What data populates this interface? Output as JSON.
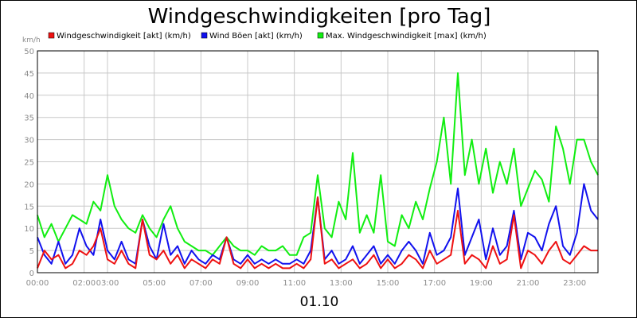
{
  "chart_data": {
    "type": "line",
    "title": "Windgeschwindigkeiten [pro Tag]",
    "ylabel": "km/h",
    "xlabel": "01.10",
    "ylim": [
      0,
      50
    ],
    "yticks": [
      0,
      5,
      10,
      15,
      20,
      25,
      30,
      35,
      40,
      45,
      50
    ],
    "xlim": [
      0,
      24
    ],
    "xticks": [
      {
        "x": 0,
        "label": "00:00"
      },
      {
        "x": 2,
        "label": "02:00"
      },
      {
        "x": 3,
        "label": "03:00"
      },
      {
        "x": 5,
        "label": "05:00"
      },
      {
        "x": 7,
        "label": "07:00"
      },
      {
        "x": 9,
        "label": "09:00"
      },
      {
        "x": 11,
        "label": "11:00"
      },
      {
        "x": 13,
        "label": "13:00"
      },
      {
        "x": 15,
        "label": "15:00"
      },
      {
        "x": 17,
        "label": "17:00"
      },
      {
        "x": 19,
        "label": "19:00"
      },
      {
        "x": 21,
        "label": "21:00"
      },
      {
        "x": 23,
        "label": "23:00"
      }
    ],
    "grid": true,
    "legend_position": "top",
    "series": [
      {
        "name": "Windgeschwindigkeit [akt] (km/h)",
        "color": "#ee1111",
        "x": [
          0,
          0.3,
          0.6,
          0.9,
          1.2,
          1.5,
          1.8,
          2.1,
          2.4,
          2.7,
          3.0,
          3.3,
          3.6,
          3.9,
          4.2,
          4.5,
          4.8,
          5.1,
          5.4,
          5.7,
          6.0,
          6.3,
          6.6,
          6.9,
          7.2,
          7.5,
          7.8,
          8.1,
          8.4,
          8.7,
          9.0,
          9.3,
          9.6,
          9.9,
          10.2,
          10.5,
          10.8,
          11.1,
          11.4,
          11.7,
          12.0,
          12.3,
          12.6,
          12.9,
          13.2,
          13.5,
          13.8,
          14.1,
          14.4,
          14.7,
          15.0,
          15.3,
          15.6,
          15.9,
          16.2,
          16.5,
          16.8,
          17.1,
          17.4,
          17.7,
          18.0,
          18.3,
          18.6,
          18.9,
          19.2,
          19.5,
          19.8,
          20.1,
          20.4,
          20.7,
          21.0,
          21.3,
          21.6,
          21.9,
          22.2,
          22.5,
          22.8,
          23.1,
          23.4,
          23.7,
          24.0
        ],
        "y": [
          1,
          5,
          3,
          4,
          1,
          2,
          5,
          4,
          6,
          10,
          3,
          2,
          5,
          2,
          1,
          12,
          4,
          3,
          5,
          2,
          4,
          1,
          3,
          2,
          1,
          3,
          2,
          8,
          2,
          1,
          3,
          1,
          2,
          1,
          2,
          1,
          1,
          2,
          1,
          3,
          17,
          2,
          3,
          1,
          2,
          3,
          1,
          2,
          4,
          1,
          3,
          1,
          2,
          4,
          3,
          1,
          5,
          2,
          3,
          4,
          14,
          2,
          4,
          3,
          1,
          6,
          2,
          3,
          13,
          1,
          5,
          4,
          2,
          5,
          7,
          3,
          2,
          4,
          6,
          5,
          5
        ]
      },
      {
        "name": "Wind Böen [akt] (km/h)",
        "color": "#1111ee",
        "x": [
          0,
          0.3,
          0.6,
          0.9,
          1.2,
          1.5,
          1.8,
          2.1,
          2.4,
          2.7,
          3.0,
          3.3,
          3.6,
          3.9,
          4.2,
          4.5,
          4.8,
          5.1,
          5.4,
          5.7,
          6.0,
          6.3,
          6.6,
          6.9,
          7.2,
          7.5,
          7.8,
          8.1,
          8.4,
          8.7,
          9.0,
          9.3,
          9.6,
          9.9,
          10.2,
          10.5,
          10.8,
          11.1,
          11.4,
          11.7,
          12.0,
          12.3,
          12.6,
          12.9,
          13.2,
          13.5,
          13.8,
          14.1,
          14.4,
          14.7,
          15.0,
          15.3,
          15.6,
          15.9,
          16.2,
          16.5,
          16.8,
          17.1,
          17.4,
          17.7,
          18.0,
          18.3,
          18.6,
          18.9,
          19.2,
          19.5,
          19.8,
          20.1,
          20.4,
          20.7,
          21.0,
          21.3,
          21.6,
          21.9,
          22.2,
          22.5,
          22.8,
          23.1,
          23.4,
          23.7,
          24.0
        ],
        "y": [
          8,
          4,
          2,
          7,
          2,
          4,
          10,
          6,
          4,
          12,
          5,
          3,
          7,
          3,
          2,
          12,
          6,
          3,
          11,
          4,
          6,
          2,
          5,
          3,
          2,
          4,
          3,
          8,
          3,
          2,
          4,
          2,
          3,
          2,
          3,
          2,
          2,
          3,
          2,
          5,
          17,
          3,
          5,
          2,
          3,
          6,
          2,
          4,
          6,
          2,
          4,
          2,
          5,
          7,
          5,
          2,
          9,
          4,
          5,
          8,
          19,
          4,
          8,
          12,
          3,
          10,
          4,
          6,
          14,
          3,
          9,
          8,
          5,
          11,
          15,
          6,
          4,
          9,
          20,
          14,
          12
        ]
      },
      {
        "name": "Max. Windgeschwindigkeit [max] (km/h)",
        "color": "#11ee11",
        "x": [
          0,
          0.3,
          0.6,
          0.9,
          1.2,
          1.5,
          1.8,
          2.1,
          2.4,
          2.7,
          3.0,
          3.3,
          3.6,
          3.9,
          4.2,
          4.5,
          4.8,
          5.1,
          5.4,
          5.7,
          6.0,
          6.3,
          6.6,
          6.9,
          7.2,
          7.5,
          7.8,
          8.1,
          8.4,
          8.7,
          9.0,
          9.3,
          9.6,
          9.9,
          10.2,
          10.5,
          10.8,
          11.1,
          11.4,
          11.7,
          12.0,
          12.3,
          12.6,
          12.9,
          13.2,
          13.5,
          13.8,
          14.1,
          14.4,
          14.7,
          15.0,
          15.3,
          15.6,
          15.9,
          16.2,
          16.5,
          16.8,
          17.1,
          17.4,
          17.7,
          18.0,
          18.3,
          18.6,
          18.9,
          19.2,
          19.5,
          19.8,
          20.1,
          20.4,
          20.7,
          21.0,
          21.3,
          21.6,
          21.9,
          22.2,
          22.5,
          22.8,
          23.1,
          23.4,
          23.7,
          24.0
        ],
        "y": [
          13,
          8,
          11,
          7,
          10,
          13,
          12,
          11,
          16,
          14,
          22,
          15,
          12,
          10,
          9,
          13,
          10,
          8,
          12,
          15,
          10,
          7,
          6,
          5,
          5,
          4,
          6,
          8,
          6,
          5,
          5,
          4,
          6,
          5,
          5,
          6,
          4,
          4,
          8,
          9,
          22,
          10,
          8,
          16,
          12,
          27,
          9,
          13,
          9,
          22,
          7,
          6,
          13,
          10,
          16,
          12,
          19,
          25,
          35,
          20,
          45,
          22,
          30,
          20,
          28,
          18,
          25,
          20,
          28,
          15,
          19,
          23,
          21,
          16,
          33,
          28,
          20,
          30,
          30,
          25,
          22
        ]
      }
    ]
  }
}
